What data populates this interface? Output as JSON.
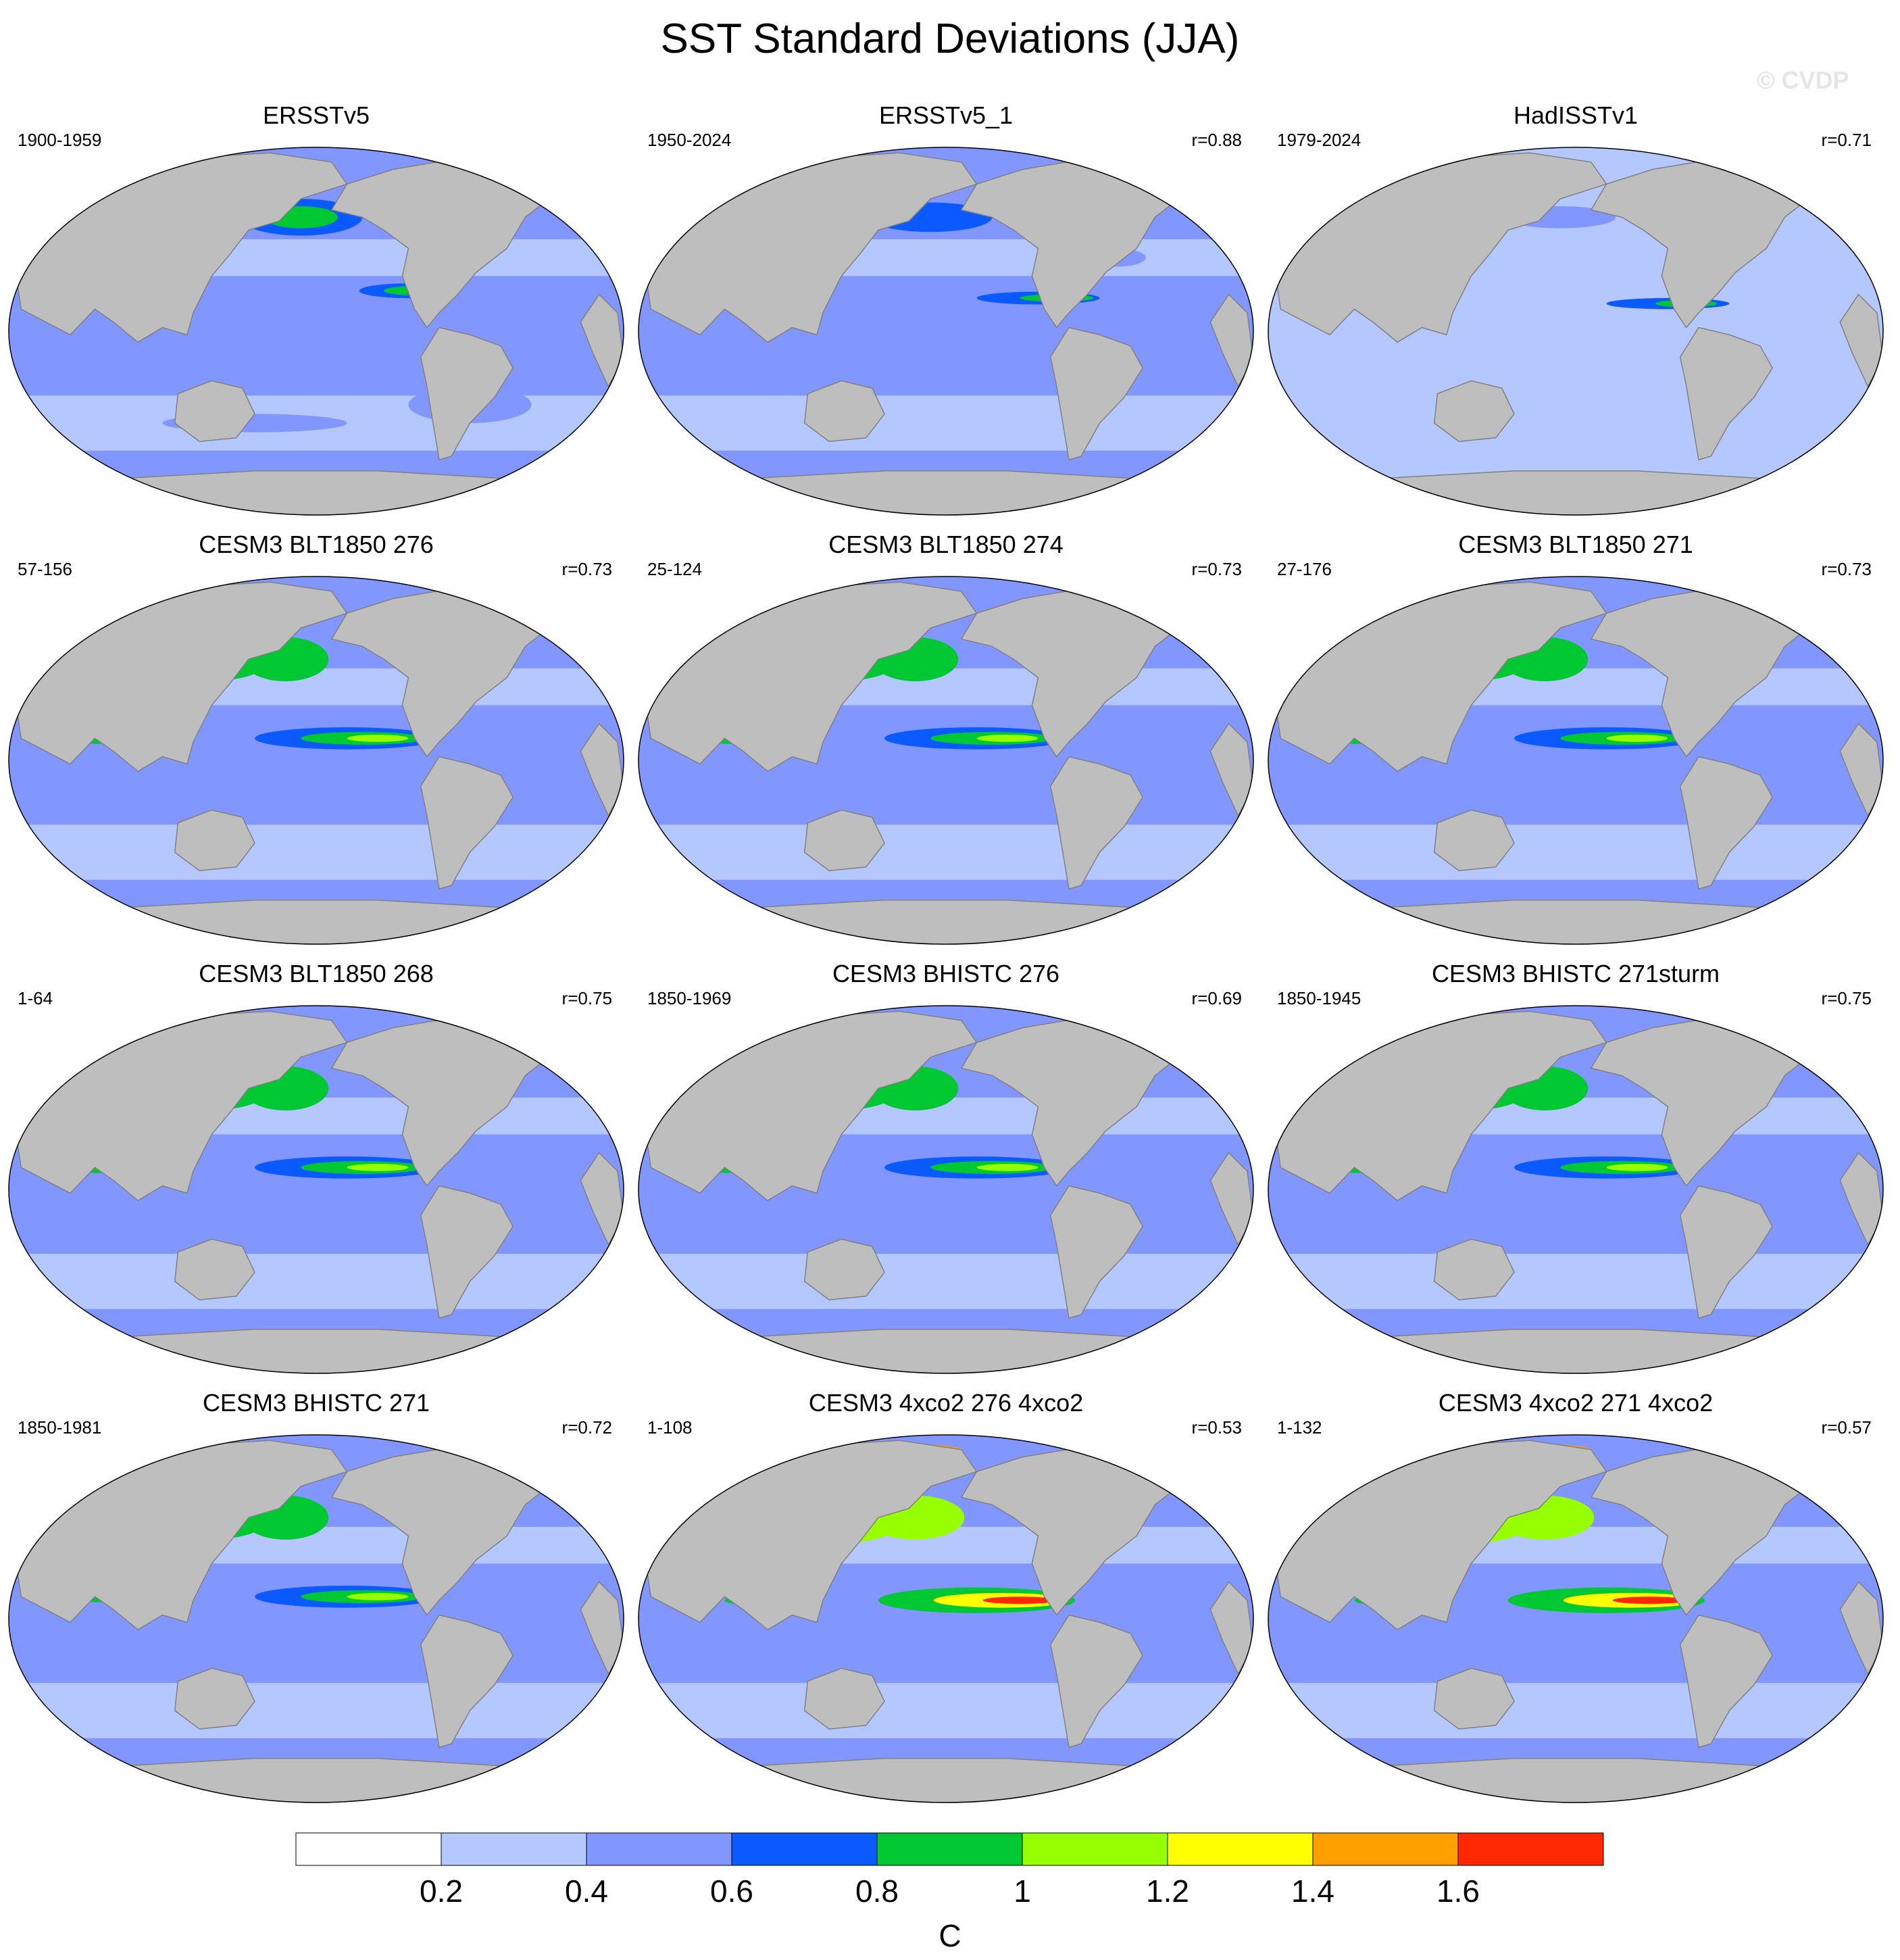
{
  "title": "SST Standard Deviations (JJA)",
  "watermark": "© CVDP",
  "panels": [
    {
      "title": "ERSSTv5",
      "period": "1900-1959",
      "r": "",
      "variant": 0
    },
    {
      "title": "ERSSTv5_1",
      "period": "1950-2024",
      "r": "r=0.88",
      "variant": 1
    },
    {
      "title": "HadISSTv1",
      "period": "1979-2024",
      "r": "r=0.71",
      "variant": 2
    },
    {
      "title": "CESM3 BLT1850 276",
      "period": "57-156",
      "r": "r=0.73",
      "variant": 3
    },
    {
      "title": "CESM3 BLT1850 274",
      "period": "25-124",
      "r": "r=0.73",
      "variant": 3
    },
    {
      "title": "CESM3 BLT1850 271",
      "period": "27-176",
      "r": "r=0.73",
      "variant": 3
    },
    {
      "title": "CESM3 BLT1850 268",
      "period": "1-64",
      "r": "r=0.75",
      "variant": 3
    },
    {
      "title": "CESM3 BHISTC 276",
      "period": "1850-1969",
      "r": "r=0.69",
      "variant": 3
    },
    {
      "title": "CESM3 BHISTC 271sturm",
      "period": "1850-1945",
      "r": "r=0.75",
      "variant": 3
    },
    {
      "title": "CESM3 BHISTC 271",
      "period": "1850-1981",
      "r": "r=0.72",
      "variant": 3
    },
    {
      "title": "CESM3 4xco2 276 4xco2",
      "period": "1-108",
      "r": "r=0.53",
      "variant": 4
    },
    {
      "title": "CESM3 4xco2 271 4xco2",
      "period": "1-132",
      "r": "r=0.57",
      "variant": 4
    }
  ],
  "colorbar": {
    "unit": "C",
    "labels": [
      "0.2",
      "0.4",
      "0.6",
      "0.8",
      "1",
      "1.2",
      "1.4",
      "1.6"
    ],
    "colors": [
      "#ffffff",
      "#b4c8ff",
      "#8296ff",
      "#0a5aff",
      "#00c832",
      "#96ff00",
      "#ffff00",
      "#ffa000",
      "#ff2800"
    ]
  },
  "colors": {
    "land": "#bebebe",
    "land_outline": "#808080",
    "frame": "#000000"
  }
}
